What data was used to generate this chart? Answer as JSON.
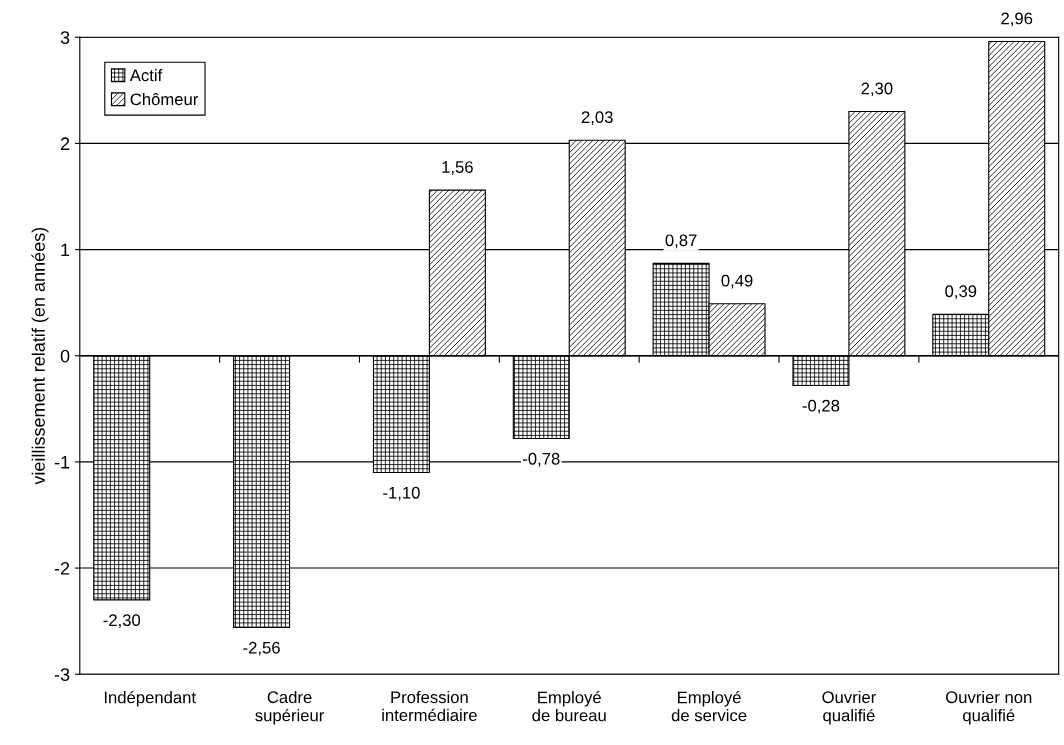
{
  "chart_data": {
    "type": "bar",
    "ylabel": "vieillissement relatif (en années)",
    "categories": [
      "Indépendant",
      "Cadre\nsupérieur",
      "Profession\nintermédiaire",
      "Employé\nde bureau",
      "Employé\nde service",
      "Ouvrier\nqualifié",
      "Ouvrier non\nqualifié"
    ],
    "series": [
      {
        "name": "Actif",
        "color": "#000000",
        "values": [
          -2.3,
          -2.56,
          -1.1,
          -0.78,
          0.87,
          -0.28,
          0.39
        ],
        "value_labels": [
          "-2,30",
          "-2,56",
          "-1,10",
          "-0,78",
          "0,87",
          "-0,28",
          "0,39"
        ]
      },
      {
        "name": "Chômeur",
        "color": "#000000",
        "values": [
          null,
          null,
          1.56,
          2.03,
          0.49,
          2.3,
          2.96
        ],
        "value_labels": [
          null,
          null,
          "1,56",
          "2,03",
          "0,49",
          "2,30",
          "2,96"
        ]
      }
    ],
    "ylim": [
      -3,
      3
    ],
    "yticks": [
      -3,
      -2,
      -1,
      0,
      1,
      2,
      3
    ],
    "grid": "y",
    "legend": "top left"
  }
}
